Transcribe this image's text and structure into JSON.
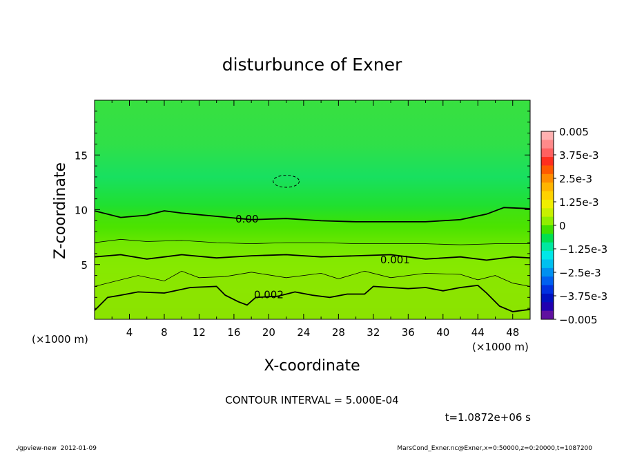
{
  "chart_data": {
    "type": "heatmap",
    "title": "disturbunce of Exner",
    "xlabel": "X-coordinate",
    "ylabel": "Z-coordinate",
    "x_unit_left": "(×1000 m)",
    "x_unit_right": "(×1000 m)",
    "xlim": [
      0,
      50
    ],
    "ylim": [
      0,
      20
    ],
    "x_ticks": [
      "4",
      "8",
      "12",
      "16",
      "20",
      "24",
      "28",
      "32",
      "36",
      "40",
      "44",
      "48"
    ],
    "y_ticks": [
      "5",
      "10",
      "15"
    ],
    "contour_labels": [
      "0.00",
      "0.001",
      "0.002"
    ],
    "contour_interval_text": "CONTOUR INTERVAL = 5.000E-04",
    "time_text": "t=1.0872e+06 s",
    "colorbar": {
      "range": [
        -0.005,
        0.005
      ],
      "labels": [
        "0.005",
        "3.75e-3",
        "2.5e-3",
        "1.25e-3",
        "0",
        "−1.25e-3",
        "−2.5e-3",
        "−3.75e-3",
        "−0.005"
      ],
      "colors": [
        "#ffb0b0",
        "#ff8a8a",
        "#ff6060",
        "#ff2e1e",
        "#ff5a00",
        "#ff8c00",
        "#ffb400",
        "#ffd200",
        "#f0ee00",
        "#c8f000",
        "#90ee00",
        "#40e000",
        "#00e050",
        "#00e8a0",
        "#00e8e8",
        "#00c0f0",
        "#0090f0",
        "#0060f0",
        "#0030e0",
        "#0010c0",
        "#2000b0",
        "#6010a0"
      ]
    },
    "contours": [
      {
        "level": 0.0,
        "points": [
          [
            0,
            9.9
          ],
          [
            3,
            9.3
          ],
          [
            6,
            9.5
          ],
          [
            8,
            9.9
          ],
          [
            10,
            9.7
          ],
          [
            14,
            9.4
          ],
          [
            18,
            9.1
          ],
          [
            22,
            9.2
          ],
          [
            26,
            9.0
          ],
          [
            30,
            8.9
          ],
          [
            34,
            8.9
          ],
          [
            38,
            8.9
          ],
          [
            42,
            9.1
          ],
          [
            45,
            9.6
          ],
          [
            47,
            10.2
          ],
          [
            50,
            10.1
          ]
        ]
      },
      {
        "level": 0.0005,
        "points": [
          [
            0,
            7.0
          ],
          [
            3,
            7.3
          ],
          [
            6,
            7.1
          ],
          [
            10,
            7.2
          ],
          [
            14,
            7.0
          ],
          [
            18,
            6.9
          ],
          [
            22,
            7.0
          ],
          [
            26,
            7.0
          ],
          [
            30,
            6.9
          ],
          [
            34,
            6.9
          ],
          [
            38,
            6.9
          ],
          [
            42,
            6.8
          ],
          [
            46,
            6.9
          ],
          [
            50,
            6.9
          ]
        ]
      },
      {
        "level": 0.001,
        "points": [
          [
            0,
            5.7
          ],
          [
            3,
            5.9
          ],
          [
            6,
            5.5
          ],
          [
            8,
            5.7
          ],
          [
            10,
            5.9
          ],
          [
            14,
            5.6
          ],
          [
            18,
            5.8
          ],
          [
            22,
            5.9
          ],
          [
            26,
            5.7
          ],
          [
            30,
            5.8
          ],
          [
            34,
            5.9
          ],
          [
            38,
            5.5
          ],
          [
            42,
            5.7
          ],
          [
            45,
            5.4
          ],
          [
            48,
            5.7
          ],
          [
            50,
            5.6
          ]
        ]
      },
      {
        "level": 0.0015,
        "points": [
          [
            0,
            3.0
          ],
          [
            3,
            3.6
          ],
          [
            5,
            4.0
          ],
          [
            8,
            3.5
          ],
          [
            10,
            4.4
          ],
          [
            12,
            3.8
          ],
          [
            15,
            3.9
          ],
          [
            18,
            4.3
          ],
          [
            22,
            3.8
          ],
          [
            26,
            4.2
          ],
          [
            28,
            3.7
          ],
          [
            31,
            4.4
          ],
          [
            34,
            3.8
          ],
          [
            38,
            4.2
          ],
          [
            42,
            4.1
          ],
          [
            44,
            3.6
          ],
          [
            46,
            4.0
          ],
          [
            48,
            3.3
          ],
          [
            50,
            3.0
          ]
        ]
      },
      {
        "level": 0.002,
        "points": [
          [
            0,
            0.8
          ],
          [
            1.5,
            2.0
          ],
          [
            3,
            2.2
          ],
          [
            5,
            2.5
          ],
          [
            8,
            2.4
          ],
          [
            11,
            2.9
          ],
          [
            14,
            3.0
          ],
          [
            15,
            2.2
          ],
          [
            16.5,
            1.6
          ],
          [
            17.5,
            1.3
          ],
          [
            18.5,
            2.0
          ],
          [
            21,
            2.1
          ],
          [
            23,
            2.5
          ],
          [
            25,
            2.2
          ],
          [
            27,
            2.0
          ],
          [
            29,
            2.3
          ],
          [
            31,
            2.3
          ],
          [
            32,
            3.0
          ],
          [
            34,
            2.9
          ],
          [
            36,
            2.8
          ],
          [
            38,
            2.9
          ],
          [
            40,
            2.6
          ],
          [
            42,
            2.9
          ],
          [
            44,
            3.1
          ],
          [
            45,
            2.4
          ],
          [
            46.5,
            1.2
          ],
          [
            48,
            0.7
          ],
          [
            50,
            0.9
          ]
        ]
      }
    ],
    "negative_contour": {
      "level": -0.0005,
      "center": [
        22,
        12.6
      ],
      "rx": 1.5,
      "ry": 0.55
    }
  },
  "footer": {
    "left": "./gpview-new  2012-01-09",
    "right": "MarsCond_Exner.nc@Exner,x=0:50000,z=0:20000,t=1087200"
  }
}
